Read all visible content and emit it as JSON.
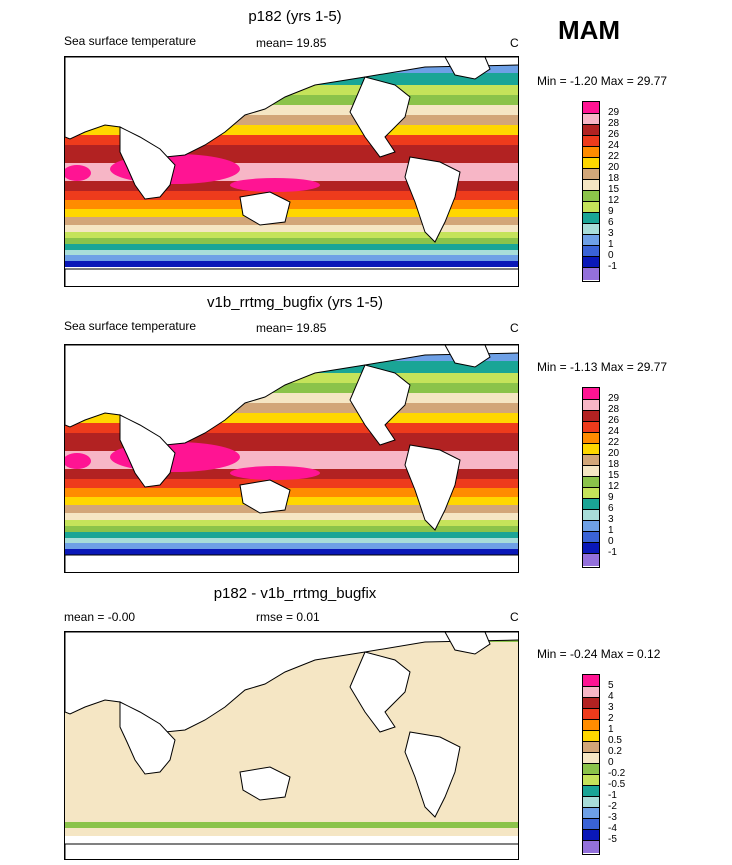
{
  "season": "MAM",
  "panels": [
    {
      "title": "p182 (yrs 1-5)",
      "left_label": "Sea surface temperature",
      "center_label": "mean=  19.85",
      "units": "C",
      "minmax": "Min =  -1.20 Max =  29.77",
      "colorbar": {
        "labels": [
          "29",
          "28",
          "26",
          "24",
          "22",
          "20",
          "18",
          "15",
          "12",
          "9",
          "6",
          "3",
          "1",
          "0",
          "-1"
        ],
        "colors": [
          "#ff1493",
          "#f7b6c6",
          "#b22222",
          "#ee3b1c",
          "#ff8c00",
          "#ffd700",
          "#d2a679",
          "#f5e6c4",
          "#8bc34a",
          "#c5e35a",
          "#1aa596",
          "#a8ddd9",
          "#6ea0e6",
          "#3a63d6",
          "#0a18b8",
          "#9370db"
        ]
      }
    },
    {
      "title": "v1b_rrtmg_bugfix (yrs 1-5)",
      "left_label": "Sea surface temperature",
      "center_label": "mean=  19.85",
      "units": "C",
      "minmax": "Min =  -1.13 Max =  29.77",
      "colorbar": {
        "labels": [
          "29",
          "28",
          "26",
          "24",
          "22",
          "20",
          "18",
          "15",
          "12",
          "9",
          "6",
          "3",
          "1",
          "0",
          "-1"
        ],
        "colors": [
          "#ff1493",
          "#f7b6c6",
          "#b22222",
          "#ee3b1c",
          "#ff8c00",
          "#ffd700",
          "#d2a679",
          "#f5e6c4",
          "#8bc34a",
          "#c5e35a",
          "#1aa596",
          "#a8ddd9",
          "#6ea0e6",
          "#3a63d6",
          "#0a18b8",
          "#9370db"
        ]
      }
    },
    {
      "title": "p182 - v1b_rrtmg_bugfix",
      "left_label": "mean =  -0.00",
      "center_label": "rmse =   0.01",
      "units": "C",
      "minmax": "Min =  -0.24 Max =   0.12",
      "colorbar": {
        "labels": [
          "5",
          "4",
          "3",
          "2",
          "1",
          "0.5",
          "0.2",
          "0",
          "-0.2",
          "-0.5",
          "-1",
          "-2",
          "-3",
          "-4",
          "-5"
        ],
        "colors": [
          "#ff1493",
          "#f7b6c6",
          "#b22222",
          "#ee3b1c",
          "#ff8c00",
          "#ffd700",
          "#d2a679",
          "#f5e6c4",
          "#8bc34a",
          "#c5e35a",
          "#1aa596",
          "#a8ddd9",
          "#6ea0e6",
          "#3a63d6",
          "#0a18b8",
          "#9370db"
        ]
      }
    }
  ]
}
